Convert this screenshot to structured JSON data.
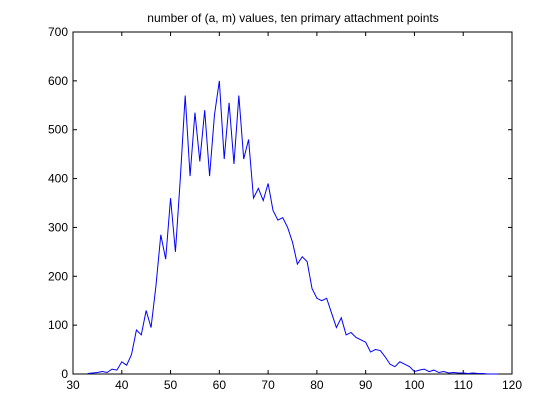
{
  "chart_data": {
    "type": "line",
    "title": "number of (a, m) values, ten primary attachment points",
    "xlabel": "",
    "ylabel": "",
    "xlim": [
      30,
      120
    ],
    "ylim": [
      0,
      700
    ],
    "xticks": [
      30,
      40,
      50,
      60,
      70,
      80,
      90,
      100,
      110,
      120
    ],
    "yticks": [
      0,
      100,
      200,
      300,
      400,
      500,
      600,
      700
    ],
    "grid": false,
    "box": true,
    "series": [
      {
        "line_color": "#0000ff",
        "x": [
          33,
          34,
          35,
          36,
          37,
          38,
          39,
          40,
          41,
          42,
          43,
          44,
          45,
          46,
          47,
          48,
          49,
          50,
          51,
          52,
          53,
          54,
          55,
          56,
          57,
          58,
          59,
          60,
          61,
          62,
          63,
          64,
          65,
          66,
          67,
          68,
          69,
          70,
          71,
          72,
          73,
          74,
          75,
          76,
          77,
          78,
          79,
          80,
          81,
          82,
          83,
          84,
          85,
          86,
          87,
          88,
          89,
          90,
          91,
          92,
          93,
          94,
          95,
          96,
          97,
          98,
          99,
          100,
          101,
          102,
          103,
          104,
          105,
          106,
          107,
          108,
          109,
          110,
          111,
          112,
          113,
          114,
          115,
          116,
          117
        ],
        "y": [
          1,
          2,
          3,
          5,
          3,
          10,
          8,
          25,
          18,
          40,
          90,
          80,
          130,
          95,
          180,
          285,
          235,
          360,
          250,
          400,
          570,
          405,
          535,
          435,
          540,
          405,
          530,
          600,
          440,
          555,
          430,
          570,
          440,
          480,
          360,
          380,
          355,
          390,
          335,
          315,
          320,
          300,
          270,
          225,
          240,
          230,
          175,
          155,
          150,
          155,
          125,
          95,
          115,
          80,
          85,
          75,
          70,
          65,
          45,
          50,
          48,
          35,
          20,
          15,
          25,
          20,
          15,
          5,
          8,
          10,
          5,
          8,
          3,
          5,
          2,
          3,
          2,
          2,
          1,
          2,
          1,
          1,
          0,
          0,
          0
        ]
      }
    ]
  }
}
